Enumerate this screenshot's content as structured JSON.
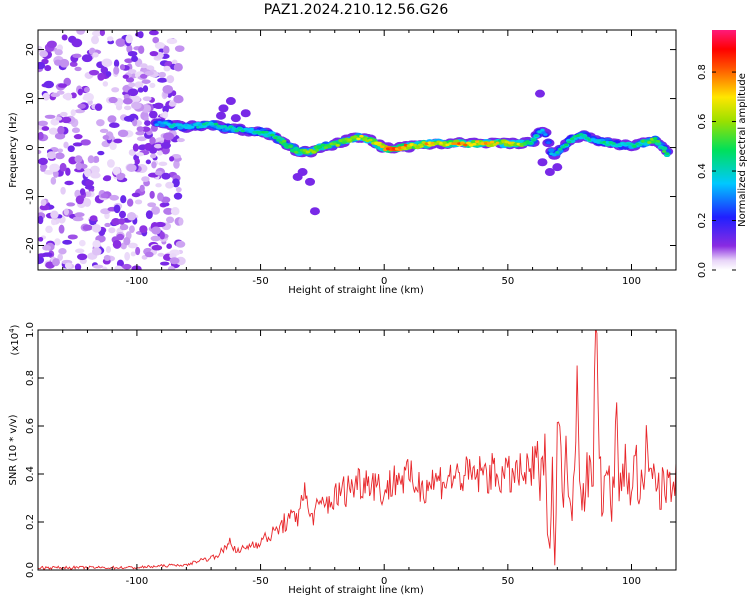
{
  "title": "PAZ1.2024.210.12.56.G26",
  "colors": {
    "snr_line": "#e8262a"
  },
  "chart_data": [
    {
      "type": "heatmap",
      "title": "PAZ1.2024.210.12.56.G26",
      "xlabel": "Height of straight line (km)",
      "ylabel": "Frequency (Hz)",
      "xlim": [
        -140,
        118
      ],
      "ylim": [
        -25,
        24
      ],
      "x_ticks": [
        -100,
        -50,
        0,
        50,
        100
      ],
      "y_ticks": [
        20,
        10,
        0,
        -10,
        -20
      ],
      "x_tick_labels": [
        "-100",
        "-50",
        "0",
        "50",
        "100"
      ],
      "y_tick_labels": [
        "20",
        "10",
        "0",
        "-10",
        "-20"
      ],
      "colorbar": {
        "label": "Normalized spectral amplitude",
        "range": [
          0,
          0.97
        ],
        "ticks": [
          0.0,
          0.2,
          0.4,
          0.6,
          0.8
        ],
        "tick_labels": [
          "0.0",
          "0.2",
          "0.4",
          "0.6",
          "0.8"
        ],
        "colormap": "rainbow (white at 0, purple, blue, cyan, green, yellow, red, magenta at max)"
      },
      "ridge": {
        "x": [
          -92,
          -85,
          -80,
          -75,
          -70,
          -65,
          -60,
          -55,
          -50,
          -45,
          -40,
          -35,
          -30,
          -25,
          -20,
          -15,
          -10,
          -5,
          0,
          5,
          10,
          15,
          20,
          25,
          30,
          35,
          40,
          45,
          50,
          55,
          60,
          63,
          65,
          68,
          70,
          75,
          80,
          85,
          90,
          95,
          100,
          105,
          110,
          115
        ],
        "y": [
          5,
          4.5,
          4.2,
          4.5,
          4.8,
          4,
          3.8,
          3.5,
          3.2,
          2.5,
          0.8,
          -0.8,
          -0.9,
          0.2,
          0.6,
          1.5,
          2.2,
          1.4,
          -0.1,
          -0.2,
          0.2,
          0.6,
          0.8,
          0.9,
          1.0,
          0.8,
          0.9,
          0.9,
          0.9,
          0.9,
          1.0,
          3.5,
          3.0,
          -1.5,
          -1.0,
          1.5,
          2.5,
          1.5,
          1.0,
          0.5,
          0.5,
          1.0,
          1.5,
          -1.5
        ],
        "amplitude": [
          0.3,
          0.4,
          0.35,
          0.4,
          0.45,
          0.4,
          0.45,
          0.4,
          0.45,
          0.45,
          0.5,
          0.55,
          0.6,
          0.55,
          0.55,
          0.6,
          0.65,
          0.6,
          0.8,
          0.9,
          0.7,
          0.7,
          0.75,
          0.65,
          0.8,
          0.7,
          0.75,
          0.65,
          0.7,
          0.65,
          0.5,
          0.35,
          0.3,
          0.35,
          0.4,
          0.45,
          0.45,
          0.4,
          0.45,
          0.4,
          0.45,
          0.5,
          0.55,
          0.45
        ]
      }
    },
    {
      "type": "line",
      "xlabel": "Height of straight line (km)",
      "ylabel": "SNR (10 * v/v)",
      "y_scale_label": "(x10",
      "y_scale_exponent": "4",
      "y_scale_suffix": ")",
      "xlim": [
        -140,
        118
      ],
      "ylim": [
        0,
        1.0
      ],
      "x_ticks": [
        -100,
        -50,
        0,
        50,
        100
      ],
      "y_ticks": [
        0.0,
        0.2,
        0.4,
        0.6,
        0.8,
        1.0
      ],
      "x_tick_labels": [
        "-100",
        "-50",
        "0",
        "50",
        "100"
      ],
      "y_tick_labels": [
        "0.0",
        "0.2",
        "0.4",
        "0.6",
        "0.8",
        "1.0"
      ],
      "series": [
        {
          "x": [
            -140,
            -120,
            -100,
            -85,
            -80,
            -75,
            -70,
            -65,
            -62,
            -60,
            -55,
            -50,
            -45,
            -40,
            -35,
            -33,
            -30,
            -25,
            -20,
            -15,
            -10,
            -5,
            0,
            5,
            10,
            15,
            20,
            25,
            30,
            35,
            40,
            45,
            50,
            55,
            60,
            62,
            64,
            65,
            66,
            67,
            68,
            69,
            70,
            72,
            74,
            76,
            78,
            80,
            82,
            84,
            86,
            88,
            90,
            92,
            94,
            96,
            98,
            100,
            102,
            104,
            106,
            108,
            110,
            112,
            114,
            116,
            118
          ],
          "y": [
            0.01,
            0.01,
            0.01,
            0.02,
            0.02,
            0.04,
            0.05,
            0.08,
            0.13,
            0.07,
            0.1,
            0.12,
            0.15,
            0.2,
            0.22,
            0.35,
            0.22,
            0.27,
            0.3,
            0.34,
            0.37,
            0.38,
            0.32,
            0.39,
            0.38,
            0.35,
            0.37,
            0.38,
            0.39,
            0.39,
            0.4,
            0.4,
            0.39,
            0.4,
            0.4,
            0.42,
            0.36,
            0.85,
            0.15,
            0.1,
            0.38,
            0.03,
            0.6,
            0.35,
            0.45,
            0.3,
            0.75,
            0.3,
            0.4,
            0.35,
            1.0,
            0.3,
            0.38,
            0.3,
            0.55,
            0.3,
            0.45,
            0.35,
            0.42,
            0.32,
            0.45,
            0.35,
            0.4,
            0.3,
            0.38,
            0.42,
            0.45
          ]
        }
      ]
    }
  ]
}
